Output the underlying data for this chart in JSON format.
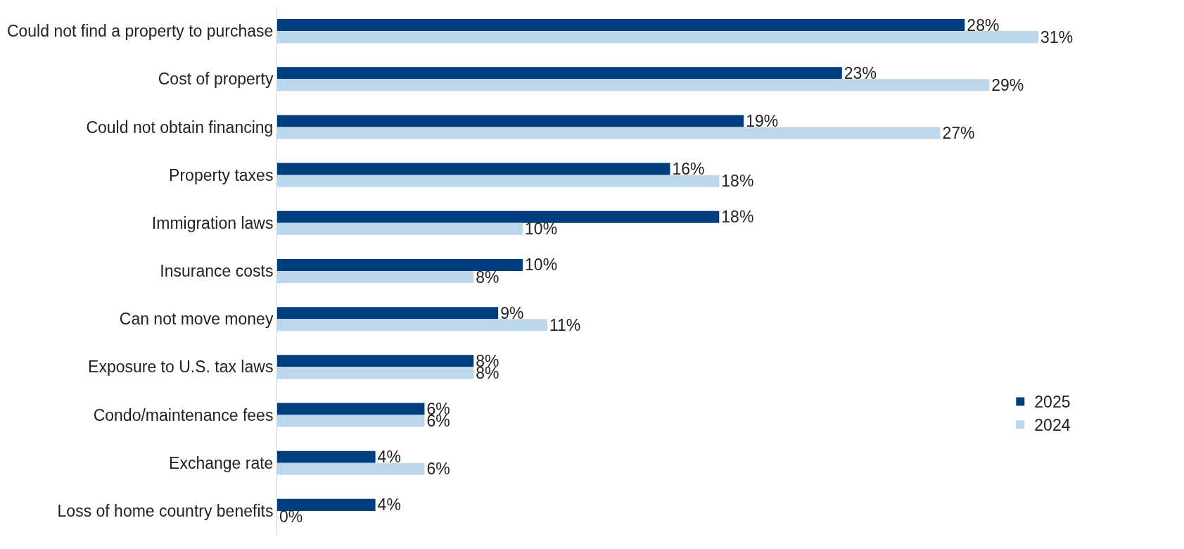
{
  "chart_data": {
    "type": "bar",
    "orientation": "horizontal",
    "categories": [
      "Could not find a property to purchase",
      "Cost of property",
      "Could not obtain financing",
      "Property taxes",
      "Immigration laws",
      "Insurance costs",
      "Can not move money",
      "Exposure to U.S. tax laws",
      "Condo/maintenance fees",
      "Exchange rate",
      "Loss of home country benefits"
    ],
    "series": [
      {
        "name": "2025",
        "color": "#003f7f",
        "values": [
          28,
          23,
          19,
          16,
          18,
          10,
          9,
          8,
          6,
          4,
          4
        ],
        "value_labels": [
          "28%",
          "23%",
          "19%",
          "16%",
          "18%",
          "10%",
          "9%",
          "8%",
          "6%",
          "4%",
          "4%"
        ]
      },
      {
        "name": "2024",
        "color": "#bdd7ea",
        "values": [
          31,
          29,
          27,
          18,
          10,
          8,
          11,
          8,
          6,
          6,
          0
        ],
        "value_labels": [
          "31%",
          "29%",
          "27%",
          "18%",
          "10%",
          "8%",
          "11%",
          "8%",
          "6%",
          "6%",
          "0%"
        ]
      }
    ],
    "legend": "bottom right"
  }
}
